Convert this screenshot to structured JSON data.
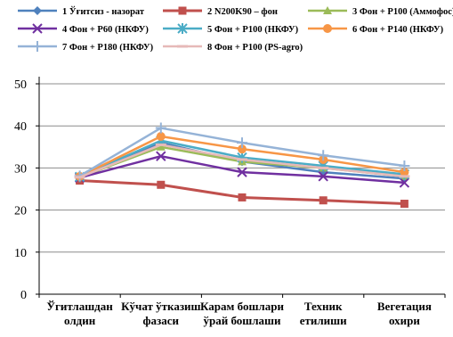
{
  "chart_data": {
    "type": "line",
    "title": "",
    "xlabel": "",
    "ylabel": "",
    "ylim": [
      0,
      50
    ],
    "yticks": [
      0,
      10,
      20,
      30,
      40,
      50
    ],
    "grid": "horizontal",
    "legend": "top",
    "categories": [
      [
        "Ўгитлашдан",
        "олдин"
      ],
      [
        "Кўчат ўтказиш",
        "фазаси"
      ],
      [
        "Карам бошлари",
        "ўрай бошлаши"
      ],
      [
        "Техник",
        "етилиши"
      ],
      [
        "Вегетация",
        "охири"
      ]
    ],
    "series": [
      {
        "name": "1 Ўғитсиз - назорат",
        "color": "#4f81bd",
        "marker": "diamond",
        "values": [
          27.5,
          36.0,
          31.5,
          29.0,
          27.5
        ]
      },
      {
        "name": "2 N200K90 – фон",
        "color": "#c0504d",
        "marker": "square",
        "values": [
          27.0,
          26.0,
          23.0,
          22.3,
          21.5
        ]
      },
      {
        "name": "3 Фон + P100 (Аммофос)",
        "color": "#9bbb59",
        "marker": "triangle",
        "values": [
          27.8,
          35.0,
          31.5,
          30.0,
          28.0
        ]
      },
      {
        "name": "4 Фон + P60 (НКФУ)",
        "color": "#7030a0",
        "marker": "x",
        "values": [
          27.7,
          32.8,
          29.0,
          28.0,
          26.5
        ]
      },
      {
        "name": "5 Фон + P100 (НКФУ)",
        "color": "#4bacc6",
        "marker": "star",
        "values": [
          27.9,
          36.5,
          32.5,
          30.5,
          28.5
        ]
      },
      {
        "name": "6 Фон + P140 (НКФУ)",
        "color": "#f79646",
        "marker": "circle",
        "values": [
          28.0,
          37.5,
          34.5,
          32.0,
          29.0
        ]
      },
      {
        "name": "7 Фон + P180 (НКФУ)",
        "color": "#95b3d7",
        "marker": "plus",
        "values": [
          28.1,
          39.5,
          36.0,
          33.0,
          30.5
        ]
      },
      {
        "name": "8 Фон + P100 (PS-agro)",
        "color": "#e6b9b8",
        "marker": "dash",
        "values": [
          27.8,
          35.5,
          32.0,
          30.0,
          28.0
        ]
      }
    ]
  }
}
